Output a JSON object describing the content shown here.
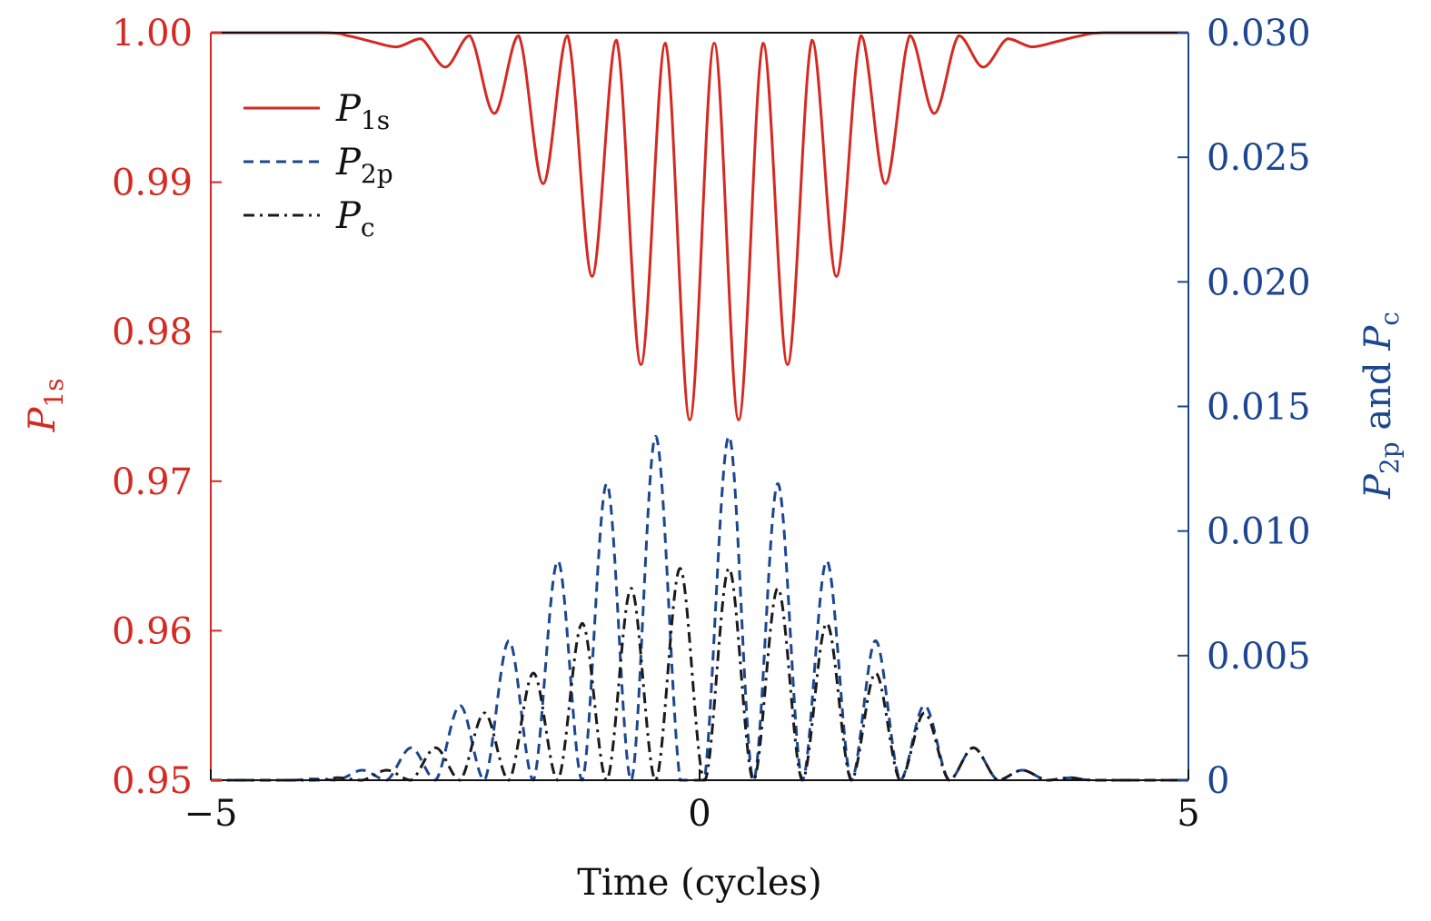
{
  "chart_data": {
    "type": "line",
    "xlabel": "Time (cycles)",
    "ylabel_left": {
      "main": "P",
      "sub": "1s"
    },
    "ylabel_right": {
      "main1": "P",
      "sub1": "2p",
      "mid": " and ",
      "main2": "P",
      "sub2": "c"
    },
    "xlim": [
      -5,
      5
    ],
    "ylim_left": [
      0.95,
      1.0
    ],
    "ylim_right": [
      0,
      0.03
    ],
    "x_ticks": [
      {
        "value": -5,
        "label": "−5"
      },
      {
        "value": 0,
        "label": "0"
      },
      {
        "value": 5,
        "label": "5"
      }
    ],
    "y_left_ticks": [
      {
        "value": 0.95,
        "label": "0.95"
      },
      {
        "value": 0.96,
        "label": "0.96"
      },
      {
        "value": 0.97,
        "label": "0.97"
      },
      {
        "value": 0.98,
        "label": "0.98"
      },
      {
        "value": 0.99,
        "label": "0.99"
      },
      {
        "value": 1.0,
        "label": "1.00"
      }
    ],
    "y_right_ticks": [
      {
        "value": 0,
        "label": "0"
      },
      {
        "value": 0.005,
        "label": "0.005"
      },
      {
        "value": 0.01,
        "label": "0.010"
      },
      {
        "value": 0.015,
        "label": "0.015"
      },
      {
        "value": 0.02,
        "label": "0.020"
      },
      {
        "value": 0.025,
        "label": "0.025"
      },
      {
        "value": 0.03,
        "label": "0.030"
      }
    ],
    "legend_position": "top-left",
    "grid": false,
    "series": [
      {
        "name": "P1s",
        "name_main": "P",
        "name_sub": "1s",
        "axis": "left",
        "color": "#d42a22",
        "style": "solid",
        "points": [
          [
            -5.0,
            1.0
          ],
          [
            -3.85,
            1.0
          ],
          [
            -3.6,
            0.9998
          ],
          [
            -3.35,
            0.9994
          ],
          [
            -3.1,
            0.99905
          ],
          [
            -2.85,
            0.9996
          ],
          [
            -2.6,
            0.9977
          ],
          [
            -2.35,
            0.9998
          ],
          [
            -2.1,
            0.9946
          ],
          [
            -1.85,
            0.9998
          ],
          [
            -1.6,
            0.9899
          ],
          [
            -1.35,
            0.9998
          ],
          [
            -1.1,
            0.9837
          ],
          [
            -0.85,
            0.9995
          ],
          [
            -0.6,
            0.9778
          ],
          [
            -0.35,
            0.9993
          ],
          [
            -0.1,
            0.9741
          ],
          [
            0.15,
            0.9993
          ],
          [
            0.4,
            0.9741
          ],
          [
            0.65,
            0.9993
          ],
          [
            0.9,
            0.9778
          ],
          [
            1.15,
            0.9995
          ],
          [
            1.4,
            0.9837
          ],
          [
            1.65,
            0.9998
          ],
          [
            1.9,
            0.9899
          ],
          [
            2.15,
            0.9998
          ],
          [
            2.4,
            0.9946
          ],
          [
            2.65,
            0.9998
          ],
          [
            2.9,
            0.9977
          ],
          [
            3.15,
            0.9996
          ],
          [
            3.4,
            0.99905
          ],
          [
            3.65,
            0.9994
          ],
          [
            3.9,
            0.9998
          ],
          [
            4.15,
            1.0
          ],
          [
            5.0,
            1.0
          ]
        ]
      },
      {
        "name": "P2p",
        "name_main": "P",
        "name_sub": "2p",
        "axis": "right",
        "color": "#1c4690",
        "style": "dashed",
        "points": [
          [
            -5.0,
            0.0
          ],
          [
            -4.2,
            0.0
          ],
          [
            -3.95,
            5e-05
          ],
          [
            -3.7,
            0.0
          ],
          [
            -3.45,
            0.0004
          ],
          [
            -3.2,
            0.0
          ],
          [
            -2.95,
            0.0013
          ],
          [
            -2.7,
            0.0
          ],
          [
            -2.45,
            0.003
          ],
          [
            -2.2,
            0.0
          ],
          [
            -1.95,
            0.0056
          ],
          [
            -1.7,
            0.0
          ],
          [
            -1.45,
            0.0088
          ],
          [
            -1.2,
            0.0
          ],
          [
            -0.95,
            0.0119
          ],
          [
            -0.7,
            0.0
          ],
          [
            -0.45,
            0.0138
          ],
          [
            -0.2,
            0.0
          ],
          [
            0.05,
            0.0
          ],
          [
            0.3,
            0.0138
          ],
          [
            0.55,
            0.0
          ],
          [
            0.8,
            0.0119
          ],
          [
            1.05,
            0.0
          ],
          [
            1.3,
            0.0088
          ],
          [
            1.55,
            0.0
          ],
          [
            1.8,
            0.0056
          ],
          [
            2.05,
            0.0
          ],
          [
            2.3,
            0.003
          ],
          [
            2.55,
            0.0
          ],
          [
            2.8,
            0.0013
          ],
          [
            3.05,
            0.0
          ],
          [
            3.3,
            0.0004
          ],
          [
            3.55,
            0.0
          ],
          [
            3.8,
            0.0001
          ],
          [
            4.05,
            0.0
          ],
          [
            5.0,
            0.0
          ]
        ]
      },
      {
        "name": "Pc",
        "name_main": "P",
        "name_sub": "c",
        "axis": "right",
        "color": "#1a1a1a",
        "style": "dashdot",
        "points": [
          [
            -5.0,
            0.0
          ],
          [
            -3.95,
            0.0
          ],
          [
            -3.7,
            0.0001
          ],
          [
            -3.45,
            0.0
          ],
          [
            -3.2,
            0.0004
          ],
          [
            -2.95,
            0.0
          ],
          [
            -2.7,
            0.0013
          ],
          [
            -2.45,
            0.0
          ],
          [
            -2.2,
            0.0027
          ],
          [
            -1.95,
            0.0
          ],
          [
            -1.7,
            0.0043
          ],
          [
            -1.45,
            0.0
          ],
          [
            -1.2,
            0.0063
          ],
          [
            -0.95,
            0.0
          ],
          [
            -0.7,
            0.0077
          ],
          [
            -0.45,
            0.0
          ],
          [
            -0.2,
            0.0085
          ],
          [
            0.05,
            0.0
          ],
          [
            0.3,
            0.0085
          ],
          [
            0.55,
            0.0
          ],
          [
            0.8,
            0.0077
          ],
          [
            1.05,
            0.0
          ],
          [
            1.3,
            0.0063
          ],
          [
            1.55,
            0.0
          ],
          [
            1.8,
            0.0043
          ],
          [
            2.05,
            0.0
          ],
          [
            2.3,
            0.0027
          ],
          [
            2.55,
            0.0
          ],
          [
            2.8,
            0.0013
          ],
          [
            3.05,
            0.0
          ],
          [
            3.3,
            0.0004
          ],
          [
            3.55,
            0.0
          ],
          [
            3.8,
            0.0001
          ],
          [
            4.05,
            0.0
          ],
          [
            5.0,
            0.0
          ]
        ]
      }
    ]
  }
}
